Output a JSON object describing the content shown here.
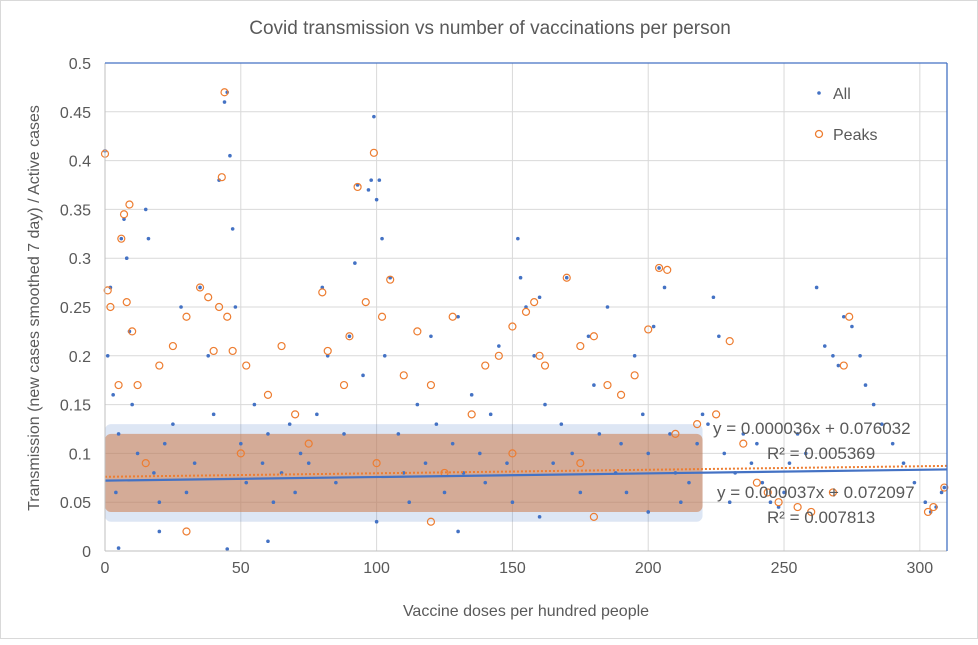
{
  "chart_data": {
    "type": "scatter",
    "title": "Covid transmission vs number of vaccinations per person",
    "xlabel": "Vaccine doses per hundred people",
    "ylabel": "Transmission (new cases smoothed 7 day) / Active cases",
    "xlim": [
      0,
      310
    ],
    "ylim": [
      0,
      0.5
    ],
    "xticks": [
      "0",
      "50",
      "100",
      "150",
      "200",
      "250",
      "300"
    ],
    "yticks": [
      "0",
      "0.05",
      "0.1",
      "0.15",
      "0.2",
      "0.25",
      "0.3",
      "0.35",
      "0.4",
      "0.45",
      "0.5"
    ],
    "grid": true,
    "legend_position": "top-right",
    "colors": {
      "all": "#4472c4",
      "peaks": "#ed7d31",
      "border": "#4472c4",
      "grid": "#d9d9d9"
    },
    "series": [
      {
        "name": "All",
        "marker": "dot",
        "points": [
          [
            0,
            0.41
          ],
          [
            1,
            0.2
          ],
          [
            2,
            0.27
          ],
          [
            3,
            0.16
          ],
          [
            4,
            0.06
          ],
          [
            5,
            0.12
          ],
          [
            6,
            0.32
          ],
          [
            7,
            0.34
          ],
          [
            8,
            0.3
          ],
          [
            9,
            0.225
          ],
          [
            10,
            0.15
          ],
          [
            12,
            0.1
          ],
          [
            15,
            0.35
          ],
          [
            16,
            0.32
          ],
          [
            18,
            0.08
          ],
          [
            20,
            0.05
          ],
          [
            22,
            0.11
          ],
          [
            25,
            0.13
          ],
          [
            28,
            0.25
          ],
          [
            30,
            0.06
          ],
          [
            33,
            0.09
          ],
          [
            35,
            0.27
          ],
          [
            38,
            0.2
          ],
          [
            40,
            0.14
          ],
          [
            42,
            0.38
          ],
          [
            44,
            0.46
          ],
          [
            45,
            0.47
          ],
          [
            46,
            0.405
          ],
          [
            47,
            0.33
          ],
          [
            48,
            0.25
          ],
          [
            50,
            0.11
          ],
          [
            52,
            0.07
          ],
          [
            55,
            0.15
          ],
          [
            58,
            0.09
          ],
          [
            60,
            0.12
          ],
          [
            62,
            0.05
          ],
          [
            65,
            0.08
          ],
          [
            68,
            0.13
          ],
          [
            70,
            0.06
          ],
          [
            72,
            0.1
          ],
          [
            75,
            0.09
          ],
          [
            78,
            0.14
          ],
          [
            80,
            0.27
          ],
          [
            82,
            0.2
          ],
          [
            85,
            0.07
          ],
          [
            88,
            0.12
          ],
          [
            90,
            0.22
          ],
          [
            92,
            0.295
          ],
          [
            93,
            0.375
          ],
          [
            95,
            0.18
          ],
          [
            97,
            0.37
          ],
          [
            98,
            0.38
          ],
          [
            99,
            0.445
          ],
          [
            100,
            0.36
          ],
          [
            101,
            0.38
          ],
          [
            102,
            0.32
          ],
          [
            103,
            0.2
          ],
          [
            105,
            0.28
          ],
          [
            108,
            0.12
          ],
          [
            110,
            0.08
          ],
          [
            112,
            0.05
          ],
          [
            115,
            0.15
          ],
          [
            118,
            0.09
          ],
          [
            120,
            0.22
          ],
          [
            122,
            0.13
          ],
          [
            125,
            0.06
          ],
          [
            128,
            0.11
          ],
          [
            130,
            0.24
          ],
          [
            132,
            0.08
          ],
          [
            135,
            0.16
          ],
          [
            138,
            0.1
          ],
          [
            140,
            0.07
          ],
          [
            142,
            0.14
          ],
          [
            145,
            0.21
          ],
          [
            148,
            0.09
          ],
          [
            150,
            0.05
          ],
          [
            152,
            0.32
          ],
          [
            153,
            0.28
          ],
          [
            155,
            0.25
          ],
          [
            158,
            0.2
          ],
          [
            160,
            0.26
          ],
          [
            162,
            0.15
          ],
          [
            165,
            0.09
          ],
          [
            168,
            0.13
          ],
          [
            170,
            0.28
          ],
          [
            172,
            0.1
          ],
          [
            175,
            0.06
          ],
          [
            178,
            0.22
          ],
          [
            180,
            0.17
          ],
          [
            182,
            0.12
          ],
          [
            185,
            0.25
          ],
          [
            188,
            0.08
          ],
          [
            190,
            0.11
          ],
          [
            192,
            0.06
          ],
          [
            195,
            0.2
          ],
          [
            198,
            0.14
          ],
          [
            200,
            0.1
          ],
          [
            202,
            0.23
          ],
          [
            204,
            0.29
          ],
          [
            206,
            0.27
          ],
          [
            208,
            0.12
          ],
          [
            210,
            0.08
          ],
          [
            212,
            0.05
          ],
          [
            215,
            0.07
          ],
          [
            218,
            0.11
          ],
          [
            220,
            0.14
          ],
          [
            222,
            0.13
          ],
          [
            224,
            0.26
          ],
          [
            226,
            0.22
          ],
          [
            228,
            0.1
          ],
          [
            230,
            0.05
          ],
          [
            232,
            0.08
          ],
          [
            235,
            0.12
          ],
          [
            238,
            0.09
          ],
          [
            240,
            0.11
          ],
          [
            242,
            0.07
          ],
          [
            245,
            0.05
          ],
          [
            248,
            0.045
          ],
          [
            250,
            0.06
          ],
          [
            252,
            0.09
          ],
          [
            255,
            0.12
          ],
          [
            258,
            0.1
          ],
          [
            262,
            0.27
          ],
          [
            265,
            0.21
          ],
          [
            268,
            0.2
          ],
          [
            270,
            0.19
          ],
          [
            272,
            0.24
          ],
          [
            275,
            0.23
          ],
          [
            278,
            0.2
          ],
          [
            280,
            0.17
          ],
          [
            283,
            0.15
          ],
          [
            286,
            0.13
          ],
          [
            290,
            0.11
          ],
          [
            294,
            0.09
          ],
          [
            298,
            0.07
          ],
          [
            302,
            0.05
          ],
          [
            304,
            0.04
          ],
          [
            306,
            0.045
          ],
          [
            308,
            0.06
          ],
          [
            309,
            0.065
          ],
          [
            5,
            0.003
          ],
          [
            45,
            0.002
          ],
          [
            60,
            0.01
          ],
          [
            130,
            0.02
          ],
          [
            20,
            0.02
          ],
          [
            100,
            0.03
          ],
          [
            160,
            0.035
          ],
          [
            200,
            0.04
          ]
        ]
      },
      {
        "name": "Peaks",
        "marker": "circle",
        "points": [
          [
            0,
            0.407
          ],
          [
            1,
            0.267
          ],
          [
            2,
            0.25
          ],
          [
            6,
            0.32
          ],
          [
            7,
            0.345
          ],
          [
            9,
            0.355
          ],
          [
            8,
            0.255
          ],
          [
            10,
            0.225
          ],
          [
            5,
            0.17
          ],
          [
            12,
            0.17
          ],
          [
            20,
            0.19
          ],
          [
            25,
            0.21
          ],
          [
            30,
            0.24
          ],
          [
            35,
            0.27
          ],
          [
            38,
            0.26
          ],
          [
            40,
            0.205
          ],
          [
            42,
            0.25
          ],
          [
            43,
            0.383
          ],
          [
            44,
            0.47
          ],
          [
            45,
            0.24
          ],
          [
            47,
            0.205
          ],
          [
            52,
            0.19
          ],
          [
            60,
            0.16
          ],
          [
            65,
            0.21
          ],
          [
            70,
            0.14
          ],
          [
            80,
            0.265
          ],
          [
            82,
            0.205
          ],
          [
            88,
            0.17
          ],
          [
            90,
            0.22
          ],
          [
            93,
            0.373
          ],
          [
            96,
            0.255
          ],
          [
            99,
            0.408
          ],
          [
            102,
            0.24
          ],
          [
            105,
            0.278
          ],
          [
            110,
            0.18
          ],
          [
            115,
            0.225
          ],
          [
            120,
            0.17
          ],
          [
            128,
            0.24
          ],
          [
            135,
            0.14
          ],
          [
            140,
            0.19
          ],
          [
            145,
            0.2
          ],
          [
            150,
            0.23
          ],
          [
            155,
            0.245
          ],
          [
            158,
            0.255
          ],
          [
            160,
            0.2
          ],
          [
            162,
            0.19
          ],
          [
            170,
            0.28
          ],
          [
            175,
            0.21
          ],
          [
            180,
            0.22
          ],
          [
            185,
            0.17
          ],
          [
            190,
            0.16
          ],
          [
            195,
            0.18
          ],
          [
            200,
            0.227
          ],
          [
            204,
            0.29
          ],
          [
            207,
            0.288
          ],
          [
            210,
            0.12
          ],
          [
            218,
            0.13
          ],
          [
            225,
            0.14
          ],
          [
            230,
            0.215
          ],
          [
            235,
            0.11
          ],
          [
            240,
            0.07
          ],
          [
            244,
            0.06
          ],
          [
            248,
            0.05
          ],
          [
            255,
            0.045
          ],
          [
            260,
            0.04
          ],
          [
            268,
            0.06
          ],
          [
            272,
            0.19
          ],
          [
            274,
            0.24
          ],
          [
            303,
            0.04
          ],
          [
            305,
            0.045
          ],
          [
            309,
            0.065
          ],
          [
            15,
            0.09
          ],
          [
            50,
            0.1
          ],
          [
            75,
            0.11
          ],
          [
            100,
            0.09
          ],
          [
            125,
            0.08
          ],
          [
            150,
            0.1
          ],
          [
            175,
            0.09
          ],
          [
            30,
            0.02
          ],
          [
            120,
            0.03
          ],
          [
            180,
            0.035
          ]
        ]
      }
    ],
    "dense_band": {
      "x": [
        0,
        220
      ],
      "y": [
        0.04,
        0.12
      ],
      "center": 0.075
    },
    "trendlines": [
      {
        "series": "Peaks",
        "style": "dotted",
        "slope": 3.6e-05,
        "intercept": 0.076032,
        "equation": "y = 0.000036x + 0.076032",
        "r2": "R² = 0.005369"
      },
      {
        "series": "All",
        "style": "solid",
        "slope": 3.7e-05,
        "intercept": 0.072097,
        "equation": "y = 0.000037x + 0.072097",
        "r2": "R² = 0.007813"
      }
    ]
  }
}
